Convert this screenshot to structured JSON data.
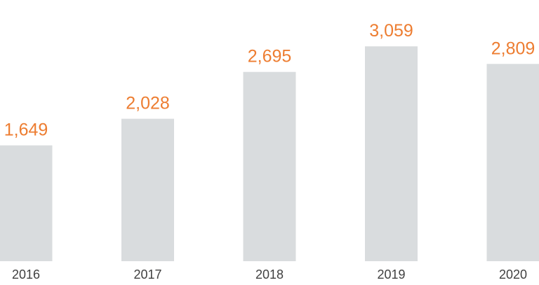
{
  "chart_data": {
    "type": "bar",
    "categories": [
      "2016",
      "2017",
      "2018",
      "2019",
      "2020"
    ],
    "values": [
      1649,
      2028,
      2695,
      3059,
      2809
    ],
    "value_labels": [
      "1,649",
      "2,028",
      "2,695",
      "3,059",
      "2,809"
    ],
    "title": "",
    "xlabel": "",
    "ylabel": "",
    "ylim": [
      0,
      3059
    ],
    "grid": false,
    "legend": "none",
    "colors": {
      "bar": "#d9dcde",
      "value_label": "#ed7d31",
      "tick_label": "#404040"
    }
  }
}
